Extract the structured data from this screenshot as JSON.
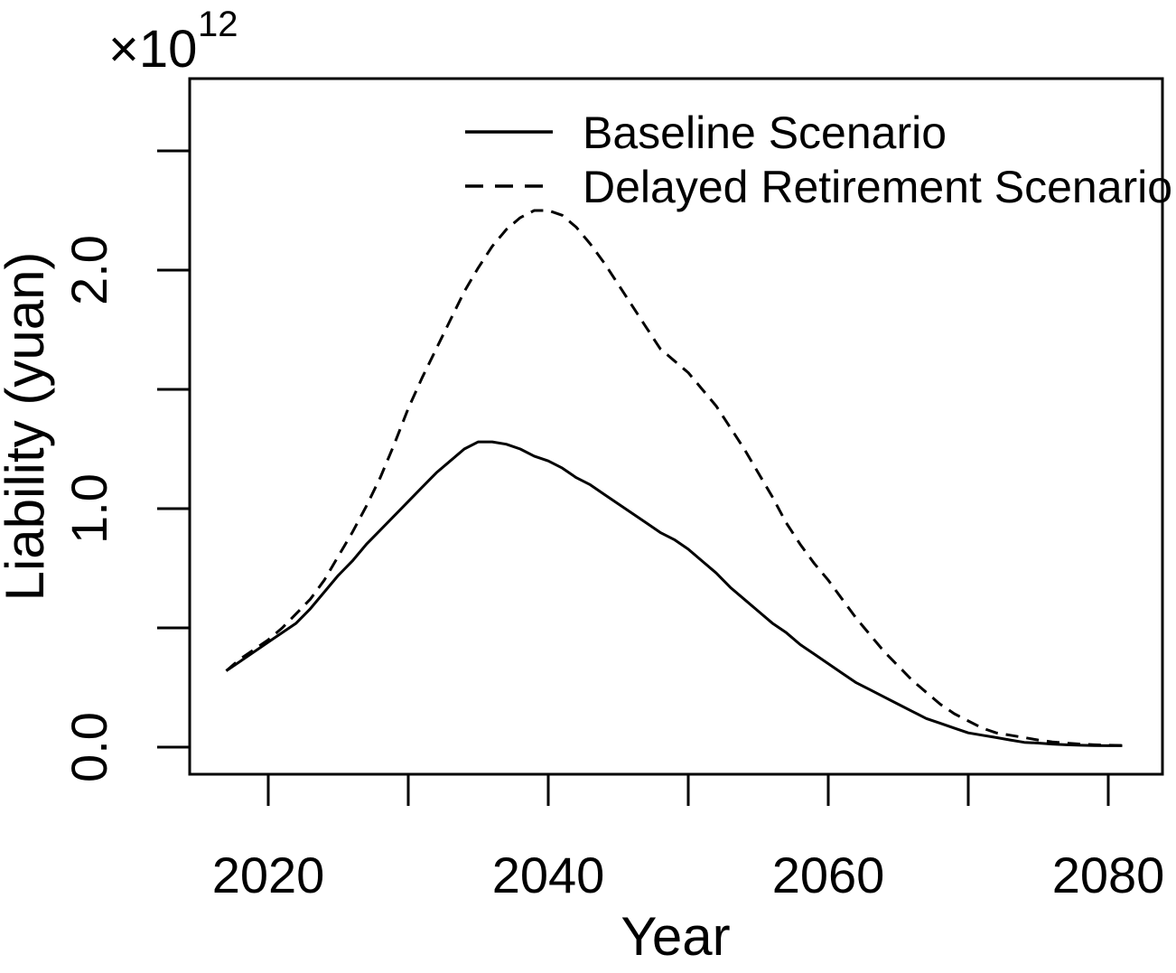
{
  "colors": {
    "line": "#000000",
    "text": "#000000",
    "background": "#ffffff"
  },
  "chart_data": {
    "type": "line",
    "title": "",
    "xlabel": "Year",
    "ylabel": "Liability (yuan)",
    "y_exponent": {
      "base": "×10",
      "power": "12"
    },
    "legend_position": "top-center-inside",
    "grid": false,
    "xlim": [
      2014.4,
      2083.9
    ],
    "ylim": [
      -0.11,
      2.8
    ],
    "x_axis": {
      "ticks": [
        2020,
        2030,
        2040,
        2050,
        2060,
        2070,
        2080
      ],
      "labeled_ticks": [
        2020,
        2040,
        2060,
        2080
      ],
      "tick_labels": [
        "2020",
        "2040",
        "2060",
        "2080"
      ]
    },
    "y_axis": {
      "ticks": [
        0.0,
        0.5,
        1.0,
        1.5,
        2.0,
        2.5
      ],
      "labeled_ticks": [
        0.0,
        1.0,
        2.0
      ],
      "tick_labels": [
        "0.0",
        "1.0",
        "2.0"
      ],
      "unit_multiplier": "1e12 yuan"
    },
    "x": [
      2017,
      2018,
      2019,
      2020,
      2021,
      2022,
      2023,
      2024,
      2025,
      2026,
      2027,
      2028,
      2029,
      2030,
      2031,
      2032,
      2033,
      2034,
      2035,
      2036,
      2037,
      2038,
      2039,
      2040,
      2041,
      2042,
      2043,
      2044,
      2045,
      2046,
      2047,
      2048,
      2049,
      2050,
      2051,
      2052,
      2053,
      2054,
      2055,
      2056,
      2057,
      2058,
      2059,
      2060,
      2061,
      2062,
      2063,
      2064,
      2065,
      2066,
      2067,
      2068,
      2069,
      2070,
      2071,
      2072,
      2073,
      2074,
      2075,
      2076,
      2077,
      2078,
      2079,
      2080,
      2081
    ],
    "series": [
      {
        "name": "Baseline Scenario",
        "style": "solid",
        "values": [
          0.32,
          0.36,
          0.4,
          0.44,
          0.48,
          0.52,
          0.58,
          0.65,
          0.72,
          0.78,
          0.85,
          0.91,
          0.97,
          1.03,
          1.09,
          1.15,
          1.2,
          1.25,
          1.28,
          1.28,
          1.27,
          1.25,
          1.22,
          1.2,
          1.17,
          1.13,
          1.1,
          1.06,
          1.02,
          0.98,
          0.94,
          0.9,
          0.87,
          0.83,
          0.78,
          0.73,
          0.67,
          0.62,
          0.57,
          0.52,
          0.48,
          0.43,
          0.39,
          0.35,
          0.31,
          0.27,
          0.24,
          0.21,
          0.18,
          0.15,
          0.12,
          0.1,
          0.08,
          0.06,
          0.05,
          0.04,
          0.03,
          0.02,
          0.017,
          0.013,
          0.01,
          0.008,
          0.007,
          0.006,
          0.006
        ]
      },
      {
        "name": "Delayed Retirement Scenario",
        "style": "dashed",
        "values": [
          0.32,
          0.37,
          0.41,
          0.45,
          0.5,
          0.56,
          0.62,
          0.7,
          0.8,
          0.9,
          1.01,
          1.13,
          1.27,
          1.42,
          1.55,
          1.67,
          1.79,
          1.91,
          2.01,
          2.1,
          2.17,
          2.22,
          2.25,
          2.25,
          2.23,
          2.18,
          2.11,
          2.03,
          1.94,
          1.85,
          1.76,
          1.67,
          1.62,
          1.57,
          1.5,
          1.43,
          1.34,
          1.25,
          1.15,
          1.05,
          0.94,
          0.85,
          0.77,
          0.7,
          0.62,
          0.54,
          0.47,
          0.4,
          0.34,
          0.28,
          0.23,
          0.18,
          0.14,
          0.11,
          0.08,
          0.06,
          0.05,
          0.04,
          0.03,
          0.022,
          0.017,
          0.013,
          0.01,
          0.008,
          0.007
        ]
      }
    ]
  }
}
